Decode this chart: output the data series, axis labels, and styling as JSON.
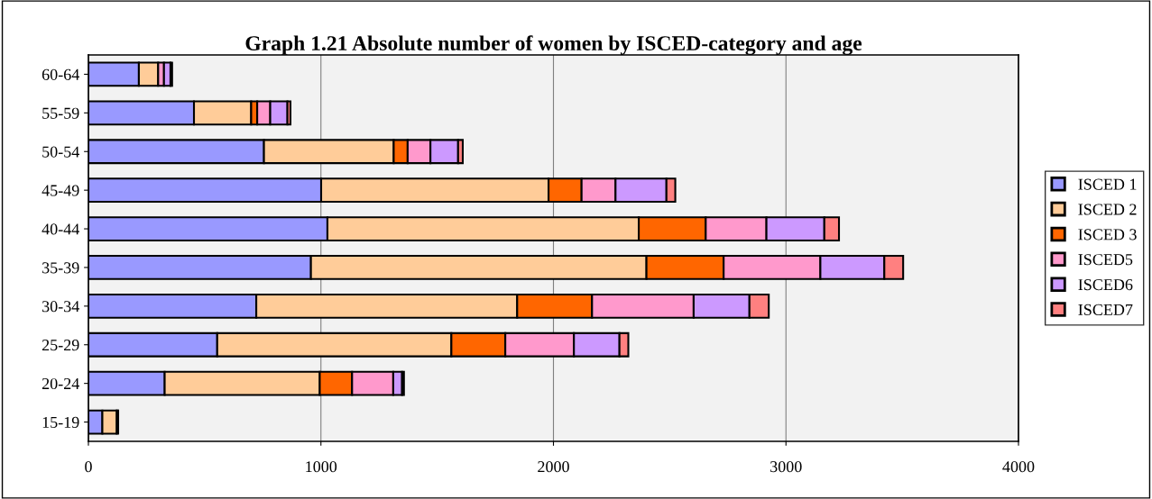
{
  "chart_data": {
    "type": "bar",
    "orientation": "horizontal",
    "stacked": true,
    "title": "Graph 1.21 Absolute number of women by ISCED-category and age",
    "categories": [
      "60-64",
      "55-59",
      "50-54",
      "45-49",
      "40-44",
      "35-39",
      "30-34",
      "25-29",
      "20-24",
      "15-19"
    ],
    "series": [
      {
        "name": "ISCED 1",
        "color": "#9999ff",
        "values": [
          217,
          454,
          755,
          1001,
          1028,
          957,
          722,
          554,
          328,
          60
        ]
      },
      {
        "name": "ISCED 2",
        "color": "#ffcc99",
        "values": [
          83,
          246,
          558,
          978,
          1339,
          1443,
          1122,
          1007,
          667,
          62
        ]
      },
      {
        "name": "ISCED 3",
        "color": "#ff6600",
        "values": [
          null,
          26,
          60,
          142,
          288,
          332,
          322,
          232,
          139,
          null
        ]
      },
      {
        "name": "ISCED5",
        "color": "#ff99cc",
        "values": [
          25,
          56,
          98,
          146,
          261,
          416,
          437,
          295,
          177,
          null
        ]
      },
      {
        "name": "ISCED6",
        "color": "#cc99ff",
        "values": [
          28,
          74,
          119,
          219,
          249,
          275,
          240,
          196,
          38,
          null
        ]
      },
      {
        "name": "ISCED7",
        "color": "#ff8080",
        "values": [
          7,
          13,
          20,
          38,
          63,
          81,
          83,
          38,
          8,
          6
        ]
      }
    ],
    "xlim": [
      0,
      4000
    ],
    "xticks": [
      0,
      1000,
      2000,
      3000,
      4000
    ],
    "grid": "x",
    "legend": "right"
  }
}
